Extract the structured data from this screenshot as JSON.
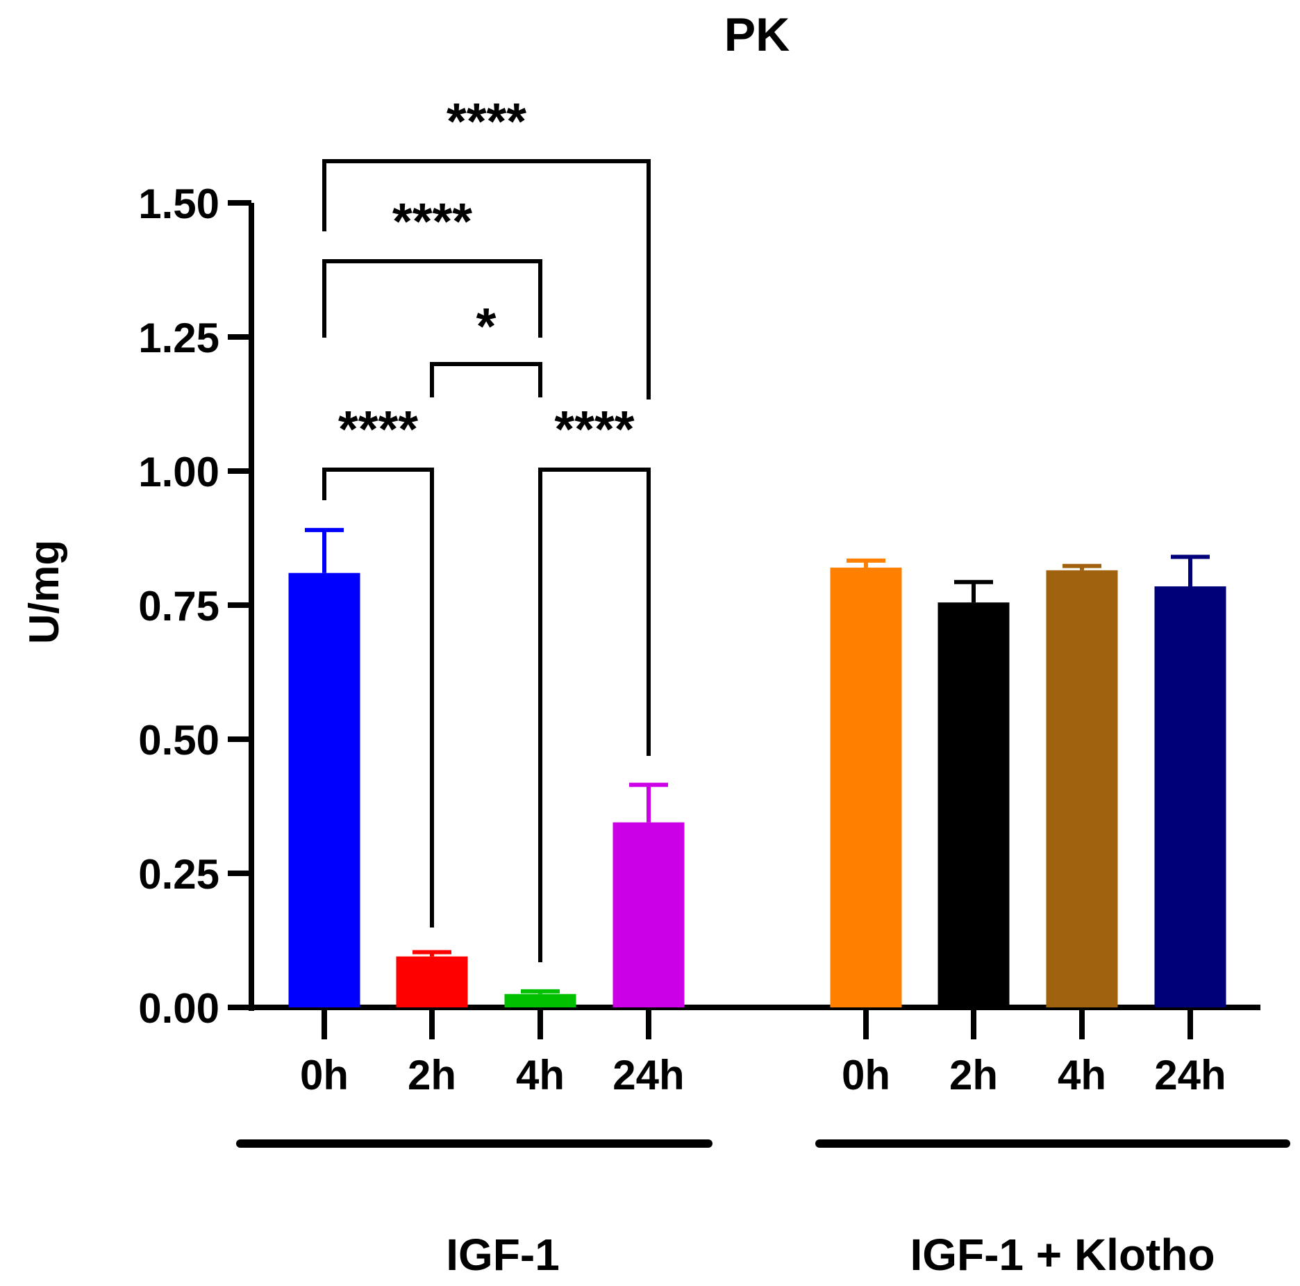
{
  "chart_data": {
    "type": "bar",
    "title": "PK",
    "ylabel": "U/mg",
    "xlabel": "",
    "ylim": [
      0,
      1.5
    ],
    "yticks": [
      "0.00",
      "0.25",
      "0.50",
      "0.75",
      "1.00",
      "1.25",
      "1.50"
    ],
    "grid": false,
    "groups": [
      {
        "name": "IGF-1",
        "bars": [
          {
            "category": "0h",
            "value": 0.81,
            "error": 0.08,
            "color": "#0000ff"
          },
          {
            "category": "2h",
            "value": 0.095,
            "error": 0.008,
            "color": "#ff0000"
          },
          {
            "category": "4h",
            "value": 0.025,
            "error": 0.005,
            "color": "#00c000"
          },
          {
            "category": "24h",
            "value": 0.345,
            "error": 0.07,
            "color": "#cc00e6"
          }
        ]
      },
      {
        "name": "IGF-1 + Klotho",
        "bars": [
          {
            "category": "0h",
            "value": 0.82,
            "error": 0.013,
            "color": "#ff8000"
          },
          {
            "category": "2h",
            "value": 0.755,
            "error": 0.038,
            "color": "#000000"
          },
          {
            "category": "4h",
            "value": 0.815,
            "error": 0.008,
            "color": "#a0620f"
          },
          {
            "category": "24h",
            "value": 0.785,
            "error": 0.055,
            "color": "#000078"
          }
        ]
      }
    ],
    "significance": [
      {
        "group": "IGF-1",
        "from": "0h",
        "to": "24h",
        "label": "****"
      },
      {
        "group": "IGF-1",
        "from": "0h",
        "to": "4h",
        "label": "****"
      },
      {
        "group": "IGF-1",
        "from": "2h",
        "to": "4h",
        "label": "*"
      },
      {
        "group": "IGF-1",
        "from": "0h",
        "to": "2h",
        "label": "****"
      },
      {
        "group": "IGF-1",
        "from": "4h",
        "to": "24h",
        "label": "****"
      }
    ]
  }
}
